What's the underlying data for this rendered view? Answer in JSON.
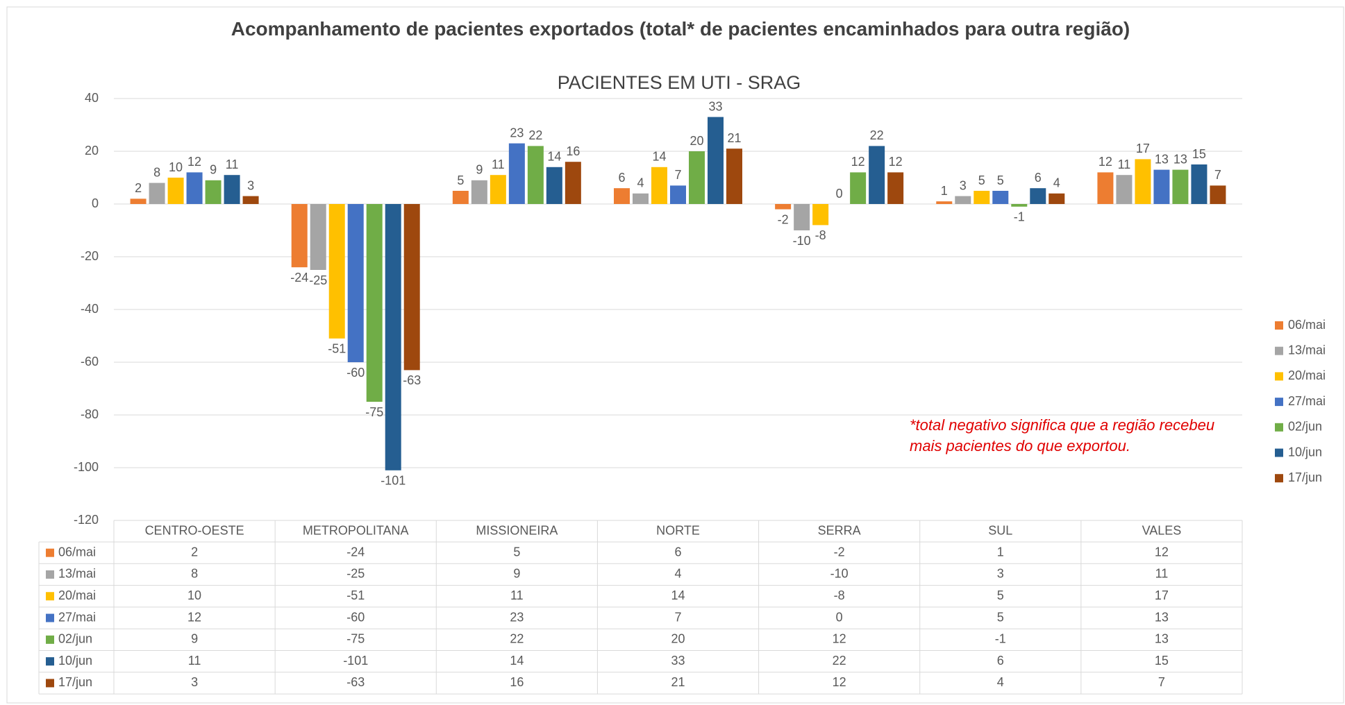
{
  "chart_data": {
    "type": "bar",
    "title": "Acompanhamento de pacientes exportados (total* de pacientes encaminhados para outra região)",
    "subtitle": "PACIENTES EM UTI - SRAG",
    "annotation": "*total negativo significa que a região recebeu mais pacientes do que exportou.",
    "categories": [
      "CENTRO-OESTE",
      "METROPOLITANA",
      "MISSIONEIRA",
      "NORTE",
      "SERRA",
      "SUL",
      "VALES"
    ],
    "series": [
      {
        "name": "06/mai",
        "color": "#ED7D31",
        "values": [
          2,
          -24,
          5,
          6,
          -2,
          1,
          12
        ]
      },
      {
        "name": "13/mai",
        "color": "#A5A5A5",
        "values": [
          8,
          -25,
          9,
          4,
          -10,
          3,
          11
        ]
      },
      {
        "name": "20/mai",
        "color": "#FFC000",
        "values": [
          10,
          -51,
          11,
          14,
          -8,
          5,
          17
        ]
      },
      {
        "name": "27/mai",
        "color": "#4472C4",
        "values": [
          12,
          -60,
          23,
          7,
          0,
          5,
          13
        ]
      },
      {
        "name": "02/jun",
        "color": "#70AD47",
        "values": [
          9,
          -75,
          22,
          20,
          12,
          -1,
          13
        ]
      },
      {
        "name": "10/jun",
        "color": "#255E91",
        "values": [
          11,
          -101,
          14,
          33,
          22,
          6,
          15
        ]
      },
      {
        "name": "17/jun",
        "color": "#9E480E",
        "values": [
          3,
          -63,
          16,
          21,
          12,
          4,
          7
        ]
      }
    ],
    "ylim": [
      -120,
      40
    ],
    "yticks": [
      -120,
      -100,
      -80,
      -60,
      -40,
      -20,
      0,
      20,
      40
    ],
    "grid": true,
    "legend": "right",
    "data_table": true
  }
}
